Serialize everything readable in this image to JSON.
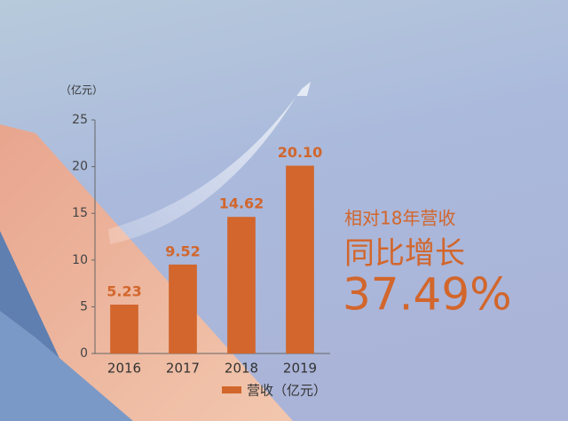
{
  "chart_data": {
    "type": "bar",
    "y_label": "（亿元）",
    "categories": [
      "2016",
      "2017",
      "2018",
      "2019"
    ],
    "series": [
      {
        "name": "营收（亿元）",
        "color": "#d2662c",
        "values": [
          5.23,
          9.52,
          14.62,
          20.1
        ],
        "value_labels": [
          "5.23",
          "9.52",
          "14.62",
          "20.10"
        ]
      }
    ],
    "ylim": [
      0,
      25
    ],
    "yticks": [
      0,
      5,
      10,
      15,
      20,
      25
    ],
    "grid": false,
    "annotations": [
      "相对18年营收",
      "同比增长",
      "37.49%"
    ]
  }
}
